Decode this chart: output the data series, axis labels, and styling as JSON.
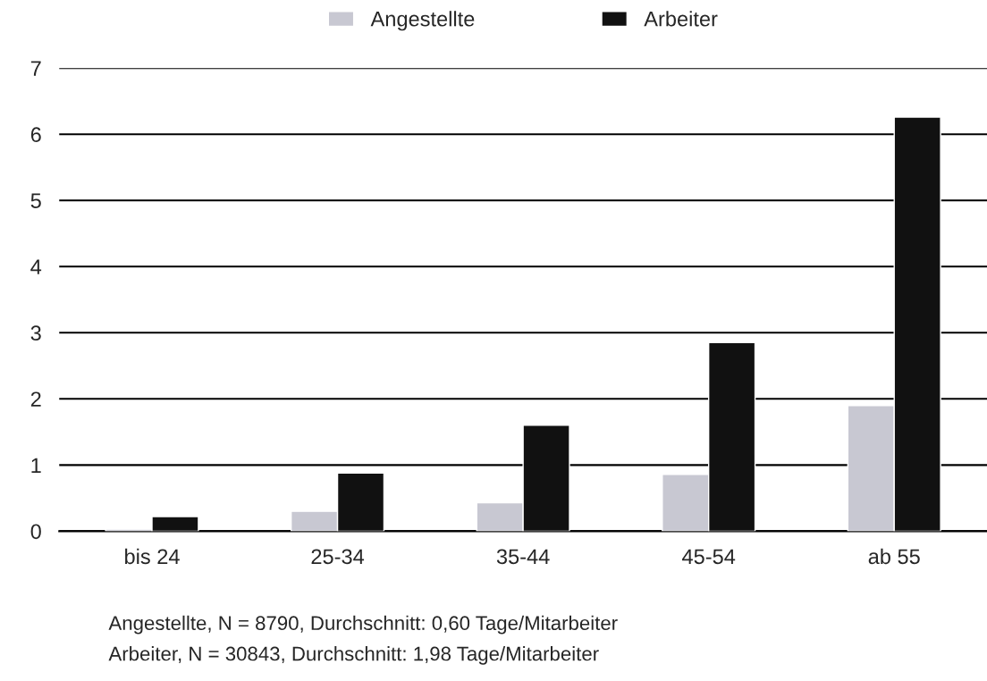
{
  "chart_data": {
    "type": "bar",
    "categories": [
      "bis 24",
      "25-34",
      "35-44",
      "45-54",
      "ab 55"
    ],
    "series": [
      {
        "name": "Angestellte",
        "color": "#c8c8d2",
        "values": [
          0.03,
          0.3,
          0.43,
          0.86,
          1.9
        ]
      },
      {
        "name": "Arbeiter",
        "color": "#111111",
        "values": [
          0.22,
          0.88,
          1.6,
          2.85,
          6.26
        ]
      }
    ],
    "ylim": [
      0,
      7
    ],
    "yticks": [
      0,
      1,
      2,
      3,
      4,
      5,
      6,
      7
    ],
    "grid": "y",
    "legend": "top",
    "annotations": [
      "Angestellte, N = 8790, Durchschnitt: 0,60 Tage/Mitarbeiter",
      "Arbeiter, N = 30843, Durchschnitt: 1,98 Tage/Mitarbeiter"
    ]
  }
}
